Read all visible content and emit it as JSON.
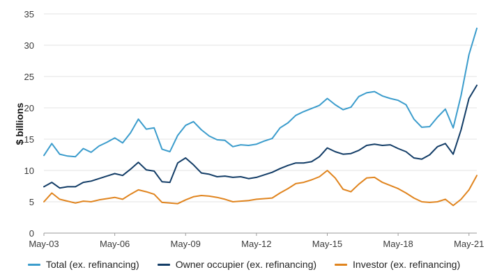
{
  "chart_data": {
    "type": "line",
    "title": "",
    "xlabel": "",
    "ylabel": "$ billions",
    "ylim": [
      0,
      35
    ],
    "yticks": [
      0,
      5,
      10,
      15,
      20,
      25,
      30,
      35
    ],
    "xticks": [
      "May-03",
      "May-06",
      "May-09",
      "May-12",
      "May-15",
      "May-18",
      "May-21"
    ],
    "grid": "horizontal",
    "legend_position": "bottom",
    "x": [
      "May-03",
      "Sep-03",
      "Jan-04",
      "May-04",
      "Sep-04",
      "Jan-05",
      "May-05",
      "Sep-05",
      "Jan-06",
      "May-06",
      "Sep-06",
      "Jan-07",
      "May-07",
      "Sep-07",
      "Jan-08",
      "May-08",
      "Sep-08",
      "Jan-09",
      "May-09",
      "Sep-09",
      "Jan-10",
      "May-10",
      "Sep-10",
      "Jan-11",
      "May-11",
      "Sep-11",
      "Jan-12",
      "May-12",
      "Sep-12",
      "Jan-13",
      "May-13",
      "Sep-13",
      "Jan-14",
      "May-14",
      "Sep-14",
      "Jan-15",
      "May-15",
      "Sep-15",
      "Jan-16",
      "May-16",
      "Sep-16",
      "Jan-17",
      "May-17",
      "Sep-17",
      "Jan-18",
      "May-18",
      "Sep-18",
      "Jan-19",
      "May-19",
      "Sep-19",
      "Jan-20",
      "May-20",
      "Sep-20",
      "Jan-21",
      "May-21",
      "Sep-21"
    ],
    "series": [
      {
        "name": "Total (ex. refinancing)",
        "color": "#3b9ccc",
        "values": [
          12.4,
          14.3,
          12.6,
          12.3,
          12.2,
          13.5,
          12.9,
          13.9,
          14.5,
          15.2,
          14.4,
          16.0,
          18.2,
          16.6,
          16.8,
          13.4,
          13.0,
          15.6,
          17.2,
          17.8,
          16.5,
          15.5,
          14.9,
          14.8,
          13.8,
          14.1,
          14.0,
          14.2,
          14.7,
          15.1,
          16.8,
          17.6,
          18.8,
          19.4,
          19.9,
          20.4,
          21.5,
          20.5,
          19.7,
          20.1,
          21.8,
          22.4,
          22.6,
          21.9,
          21.5,
          21.2,
          20.5,
          18.2,
          16.9,
          17.0,
          18.5,
          19.8,
          16.8,
          22.0,
          28.5,
          32.7
        ]
      },
      {
        "name": "Owner occupier (ex. refinancing)",
        "color": "#123c66",
        "values": [
          7.4,
          8.1,
          7.2,
          7.4,
          7.4,
          8.1,
          8.3,
          8.7,
          9.1,
          9.5,
          9.2,
          10.2,
          11.3,
          10.1,
          9.9,
          8.2,
          8.1,
          11.2,
          12.0,
          10.9,
          9.6,
          9.4,
          9.0,
          9.1,
          8.9,
          9.0,
          8.7,
          8.9,
          9.3,
          9.7,
          10.3,
          10.8,
          11.2,
          11.2,
          11.4,
          12.2,
          13.6,
          13.0,
          12.6,
          12.7,
          13.2,
          14.0,
          14.2,
          14.0,
          14.1,
          13.5,
          13.0,
          12.0,
          11.8,
          12.5,
          13.8,
          14.3,
          12.6,
          16.5,
          21.5,
          23.6
        ]
      },
      {
        "name": "Investor (ex. refinancing)",
        "color": "#e0841e",
        "values": [
          5.0,
          6.4,
          5.4,
          5.1,
          4.8,
          5.1,
          5.0,
          5.3,
          5.5,
          5.7,
          5.4,
          6.2,
          6.9,
          6.6,
          6.2,
          4.9,
          4.8,
          4.7,
          5.3,
          5.8,
          6.0,
          5.9,
          5.7,
          5.4,
          5.0,
          5.1,
          5.2,
          5.4,
          5.5,
          5.6,
          6.4,
          7.1,
          7.9,
          8.1,
          8.5,
          9.0,
          10.0,
          8.8,
          7.0,
          6.6,
          7.8,
          8.8,
          8.9,
          8.1,
          7.6,
          7.1,
          6.4,
          5.6,
          5.0,
          4.9,
          5.0,
          5.4,
          4.4,
          5.4,
          6.9,
          9.2
        ]
      }
    ]
  }
}
